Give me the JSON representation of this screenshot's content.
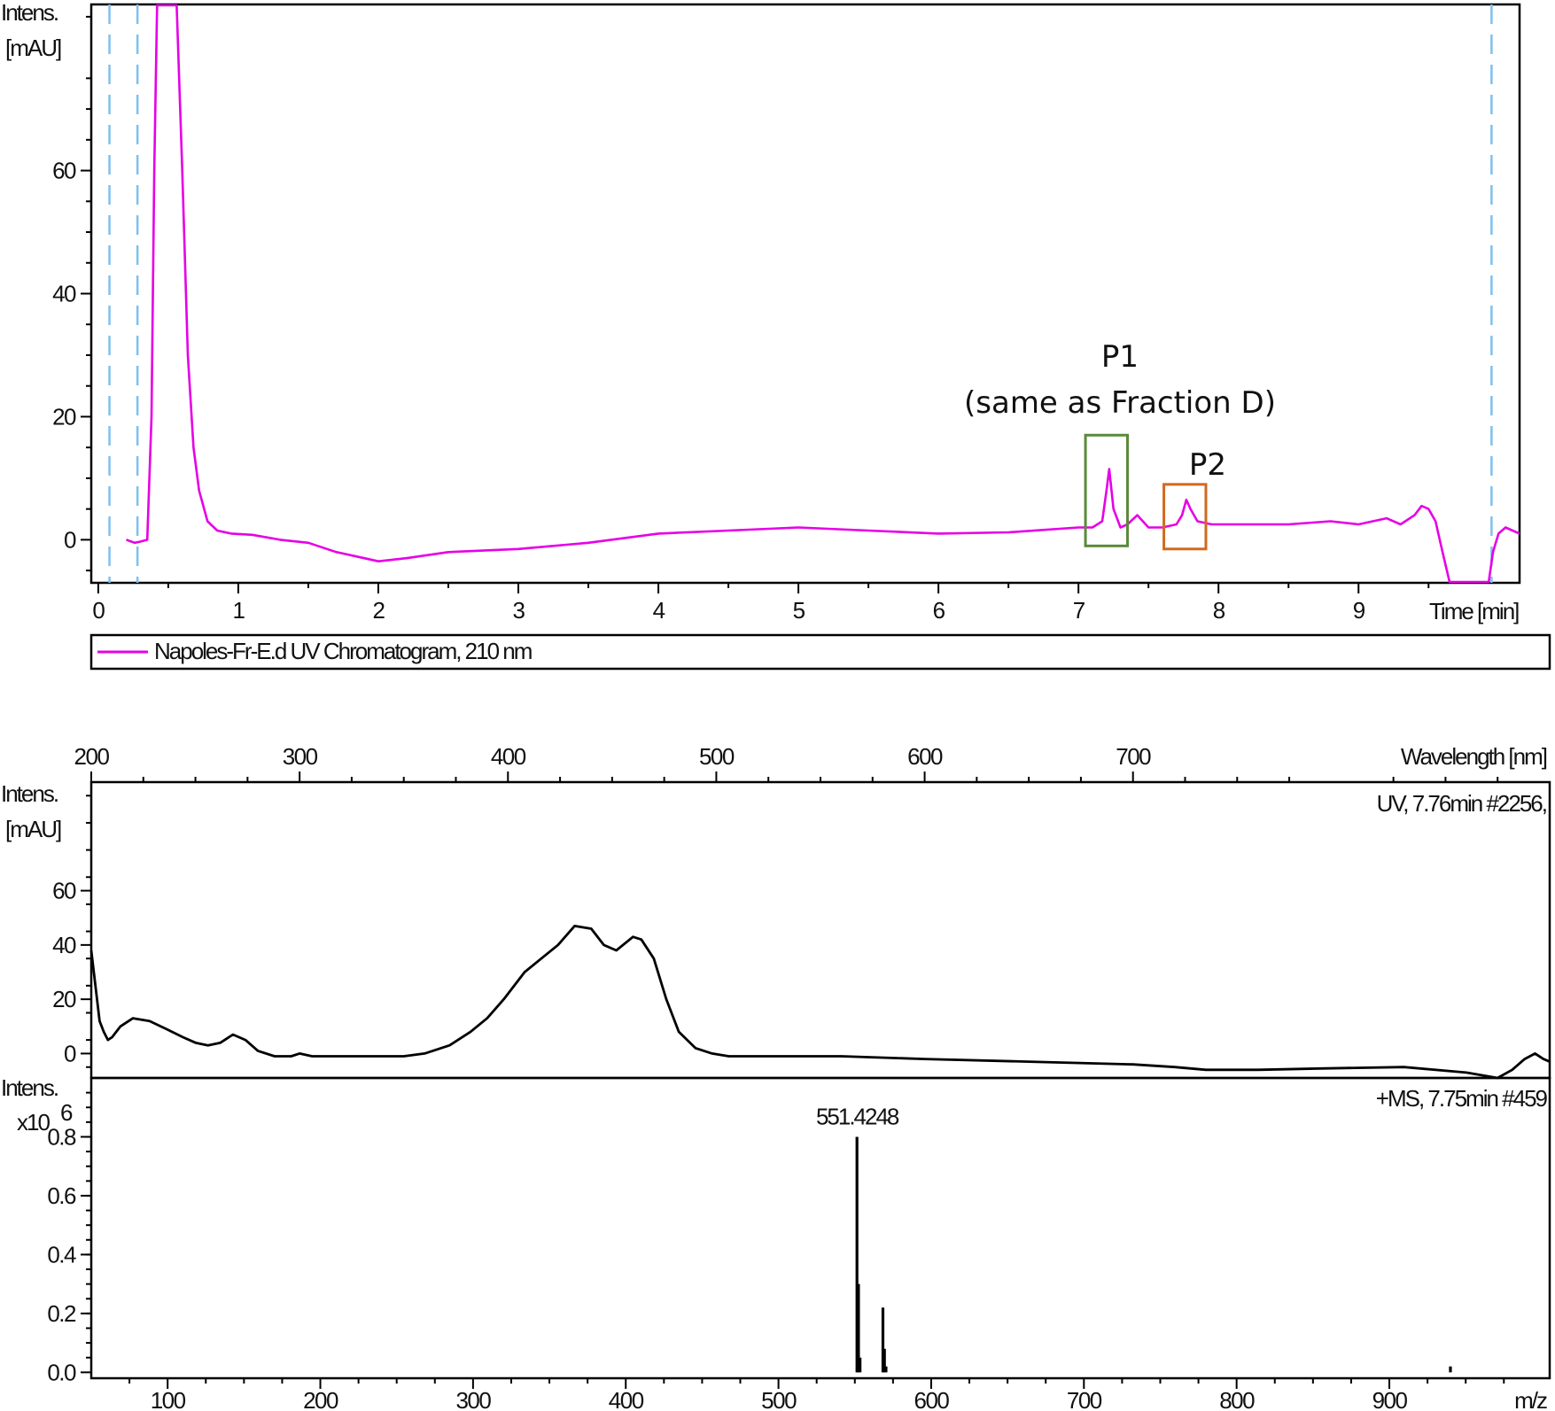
{
  "chart_data": [
    {
      "type": "line",
      "id": "uv-chromatogram",
      "ylabel": "Intens.\n[mAU]",
      "ylabel_line1": "Intens.",
      "ylabel_line2": "[mAU]",
      "xlabel": "Time [min]",
      "xlim": [
        -0.05,
        10.15
      ],
      "ylim": [
        -7,
        87
      ],
      "yticks": [
        0,
        20,
        40,
        60
      ],
      "xticks": [
        0,
        1,
        2,
        3,
        4,
        5,
        6,
        7,
        8,
        9
      ],
      "legend": "Napoles-Fr-E.d UV Chromatogram, 210 nm",
      "series_color": "#e600e6",
      "dashed_lines_x": [
        0.08,
        0.28,
        9.95
      ],
      "annotations": {
        "p1_line1": "P1",
        "p1_line2": "(same as Fraction D)",
        "p2": "P2"
      },
      "series": [
        {
          "x": [
            0.2,
            0.26,
            0.3,
            0.35,
            0.38,
            0.4,
            0.42,
            0.44,
            0.46,
            0.5,
            0.56,
            0.6,
            0.64,
            0.68,
            0.72,
            0.78,
            0.85,
            0.95,
            1.1,
            1.3,
            1.5,
            1.7,
            1.9,
            2.0,
            2.2,
            2.5,
            3.0,
            3.5,
            4.0,
            4.5,
            5.0,
            5.5,
            6.0,
            6.5,
            7.0,
            7.1,
            7.17,
            7.2,
            7.22,
            7.25,
            7.3,
            7.35,
            7.42,
            7.5,
            7.6,
            7.7,
            7.74,
            7.77,
            7.8,
            7.85,
            7.95,
            8.2,
            8.5,
            8.8,
            9.0,
            9.2,
            9.3,
            9.4,
            9.45,
            9.5,
            9.55,
            9.58,
            9.6,
            9.65,
            9.7,
            9.75,
            9.8,
            9.85,
            9.9,
            9.93,
            9.96,
            10.0,
            10.05,
            10.1,
            10.15
          ],
          "y": [
            0,
            -0.5,
            -0.3,
            0,
            20,
            60,
            87,
            87,
            87,
            87,
            87,
            60,
            30,
            15,
            8,
            3,
            1.5,
            1,
            0.8,
            0,
            -0.5,
            -2,
            -3,
            -3.5,
            -3,
            -2,
            -1.5,
            -0.5,
            1,
            1.5,
            2,
            1.5,
            1,
            1.2,
            2,
            2,
            3,
            8,
            11.5,
            5,
            2,
            2.5,
            4,
            2,
            2,
            2.5,
            4,
            6.5,
            5,
            3,
            2.5,
            2.5,
            2.5,
            3,
            2.5,
            3.5,
            2.5,
            4,
            5.5,
            5,
            3,
            0,
            -2,
            -7,
            -7,
            -7,
            -7,
            -7,
            -7,
            -7,
            -2,
            1,
            2,
            1.5,
            1
          ]
        }
      ]
    },
    {
      "type": "line",
      "id": "uv-spectrum",
      "ylabel_line1": "Intens.",
      "ylabel_line2": "[mAU]",
      "xlabel": "Wavelength [nm]",
      "xlim": [
        200,
        900
      ],
      "ylim": [
        -9,
        100
      ],
      "yticks": [
        0,
        20,
        40,
        60
      ],
      "xticks": [
        200,
        300,
        400,
        500,
        600,
        700
      ],
      "caption": "UV, 7.76min #2256,",
      "series": [
        {
          "x": [
            200,
            202,
            204,
            206,
            208,
            210,
            214,
            220,
            228,
            236,
            244,
            250,
            256,
            262,
            268,
            274,
            280,
            288,
            296,
            300,
            306,
            316,
            330,
            350,
            360,
            372,
            382,
            390,
            398,
            408,
            416,
            424,
            432,
            440,
            446,
            452,
            460,
            464,
            470,
            476,
            482,
            490,
            498,
            506,
            516,
            530,
            560,
            600,
            650,
            700,
            720,
            735,
            760,
            790,
            830,
            860,
            875,
            882,
            888,
            893,
            897,
            900
          ],
          "y": [
            38,
            25,
            12,
            8,
            5,
            6,
            10,
            13,
            12,
            9,
            6,
            4,
            3,
            4,
            7,
            5,
            1,
            -1,
            -1,
            0,
            -1,
            -1,
            -1,
            -1,
            0,
            3,
            8,
            13,
            20,
            30,
            35,
            40,
            47,
            46,
            40,
            38,
            43,
            42,
            35,
            20,
            8,
            2,
            0,
            -1,
            -1,
            -1,
            -1,
            -2,
            -3,
            -4,
            -5,
            -6,
            -6,
            -5.5,
            -5,
            -7,
            -9,
            -6,
            -2,
            0,
            -2,
            -3
          ]
        }
      ]
    },
    {
      "type": "bar",
      "id": "ms-spectrum",
      "ylabel_line1": "Intens.",
      "ylabel_line2": "x10",
      "ylabel_exp": "6",
      "xlabel": "m/z",
      "xlim": [
        50,
        1005
      ],
      "ylim": [
        -0.02,
        1.0
      ],
      "yticks": [
        0.0,
        0.2,
        0.4,
        0.6,
        0.8
      ],
      "ytick_labels": [
        "0.0",
        "0.2",
        "0.4",
        "0.6",
        "0.8"
      ],
      "xticks": [
        100,
        200,
        300,
        400,
        500,
        600,
        700,
        800,
        900
      ],
      "caption": "+MS, 7.75min #459",
      "peak_label": "551.4248",
      "peaks": [
        {
          "mz": 551.4,
          "intensity": 0.8
        },
        {
          "mz": 552.4,
          "intensity": 0.3
        },
        {
          "mz": 553.4,
          "intensity": 0.05
        },
        {
          "mz": 568.4,
          "intensity": 0.22
        },
        {
          "mz": 569.4,
          "intensity": 0.08
        },
        {
          "mz": 570.4,
          "intensity": 0.02
        },
        {
          "mz": 940.0,
          "intensity": 0.02
        }
      ]
    }
  ]
}
